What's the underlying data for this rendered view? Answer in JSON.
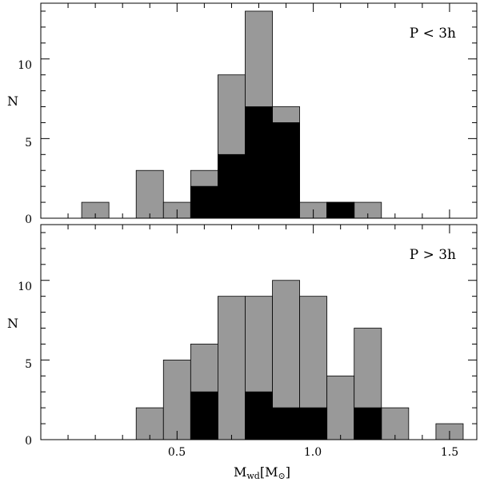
{
  "chart_data": [
    {
      "type": "bar",
      "panel": "top",
      "annotation": "P < 3h",
      "ylabel": "N",
      "xlabel": "",
      "xlim": [
        0.0,
        1.6
      ],
      "ylim": [
        0,
        13.5
      ],
      "yticks": [
        0,
        5,
        10
      ],
      "xticks": [
        0.5,
        1.0,
        1.5
      ],
      "bin_width": 0.1,
      "bin_centers": [
        0.1,
        0.2,
        0.3,
        0.4,
        0.5,
        0.6,
        0.7,
        0.8,
        0.9,
        1.0,
        1.1,
        1.2,
        1.3,
        1.4,
        1.5
      ],
      "series": [
        {
          "color": "#999999",
          "values": [
            0,
            1,
            0,
            3,
            1,
            3,
            9,
            13,
            7,
            1,
            1,
            1,
            0,
            0,
            0
          ]
        },
        {
          "color": "#000000",
          "values": [
            0,
            0,
            0,
            0,
            0,
            2,
            4,
            7,
            6,
            0,
            1,
            0,
            0,
            0,
            0
          ]
        }
      ]
    },
    {
      "type": "bar",
      "panel": "bottom",
      "annotation": "P > 3h",
      "ylabel": "N",
      "xlabel": "M_wd[M_⊙]",
      "xlim": [
        0.0,
        1.6
      ],
      "ylim": [
        0,
        13.5
      ],
      "yticks": [
        0,
        5,
        10
      ],
      "xticks": [
        0.5,
        1.0,
        1.5
      ],
      "bin_width": 0.1,
      "bin_centers": [
        0.1,
        0.2,
        0.3,
        0.4,
        0.5,
        0.6,
        0.7,
        0.8,
        0.9,
        1.0,
        1.1,
        1.2,
        1.3,
        1.4,
        1.5
      ],
      "series": [
        {
          "color": "#999999",
          "values": [
            0,
            0,
            0,
            2,
            5,
            6,
            9,
            9,
            10,
            9,
            4,
            7,
            2,
            0,
            1
          ]
        },
        {
          "color": "#000000",
          "values": [
            0,
            0,
            0,
            0,
            0,
            3,
            0,
            3,
            2,
            2,
            0,
            2,
            0,
            0,
            0
          ]
        }
      ]
    }
  ],
  "axis_text": {
    "tick_0": "0",
    "tick_5": "5",
    "tick_10": "10",
    "xtick_05": "0.5",
    "xtick_10": "1.0",
    "xtick_15": "1.5",
    "xlabel_main": "M",
    "xlabel_sub": "wd",
    "xlabel_unit_open": "[M",
    "xlabel_unit_sub": "⊙",
    "xlabel_unit_close": "]"
  }
}
